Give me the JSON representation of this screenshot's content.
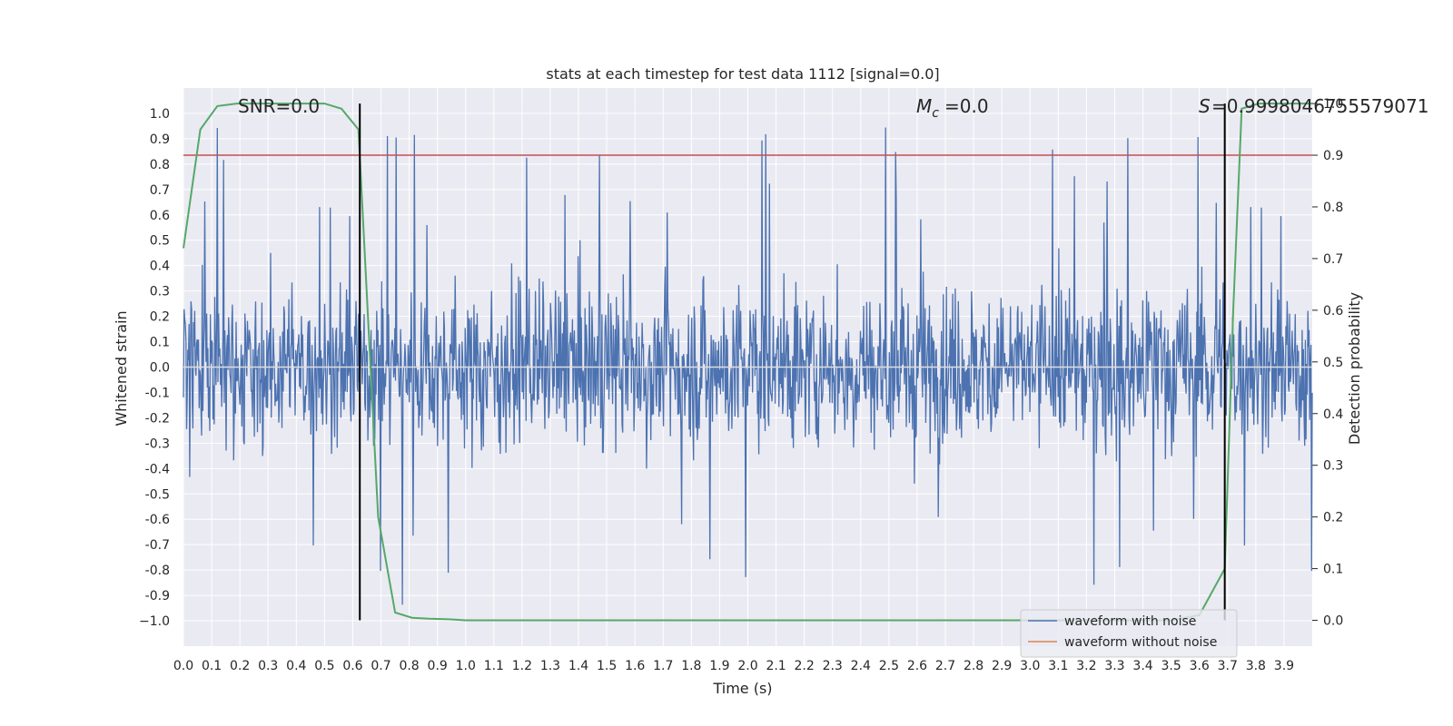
{
  "chart_data": {
    "type": "line",
    "title": "stats at each timestep for test data 1112 [signal=0.0]",
    "xlabel": "Time (s)",
    "ylabel": "Whitened strain",
    "ylabel_right": "Detection probability",
    "xlim": [
      0.0,
      4.0
    ],
    "ylim": [
      -1.1,
      1.1
    ],
    "ylim_right": [
      -0.05,
      1.03
    ],
    "x_ticks": [
      "0.0",
      "0.1",
      "0.2",
      "0.3",
      "0.4",
      "0.5",
      "0.6",
      "0.7",
      "0.8",
      "0.9",
      "1.0",
      "1.1",
      "1.2",
      "1.3",
      "1.4",
      "1.5",
      "1.6",
      "1.7",
      "1.8",
      "1.9",
      "2.0",
      "2.1",
      "2.2",
      "2.3",
      "2.4",
      "2.5",
      "2.6",
      "2.7",
      "2.8",
      "2.9",
      "3.0",
      "3.1",
      "3.2",
      "3.3",
      "3.4",
      "3.5",
      "3.6",
      "3.7",
      "3.8",
      "3.9"
    ],
    "y_ticks": [
      "1.0",
      "0.9",
      "0.8",
      "0.7",
      "0.6",
      "0.5",
      "0.4",
      "0.3",
      "0.2",
      "0.1",
      "0.0",
      "-0.1",
      "-0.2",
      "-0.3",
      "-0.4",
      "-0.5",
      "-0.6",
      "-0.7",
      "-0.8",
      "-0.9",
      "−1.0"
    ],
    "y_right_ticks": [
      "1.0",
      "0.9",
      "0.8",
      "0.7",
      "0.6",
      "0.5",
      "0.4",
      "0.3",
      "0.2",
      "0.1",
      "0.0"
    ],
    "grid": true,
    "legend_position": "lower-right",
    "annotations": {
      "snr_label": "SNR=0.0",
      "mc_label": "=0.0",
      "s_label": "=0.9998046755579071"
    },
    "threshold_line": {
      "value_right": 0.9,
      "color": "#c44e52"
    },
    "vertical_lines_x": [
      0.625,
      3.69
    ],
    "series": [
      {
        "name": "waveform with noise",
        "color": "#4c72b0",
        "kind": "noise",
        "amplitude_typical": 0.4,
        "amplitude_max": 0.98
      },
      {
        "name": "waveform without noise",
        "color": "#dd8452",
        "values_y": 0.0
      },
      {
        "color": "#55a868",
        "axis": "right",
        "x": [
          0.0,
          0.06,
          0.12,
          0.19,
          0.25,
          0.31,
          0.37,
          0.44,
          0.5,
          0.56,
          0.62,
          0.69,
          0.75,
          0.81,
          0.87,
          0.94,
          1.0,
          1.5,
          2.0,
          2.5,
          3.0,
          3.5,
          3.6,
          3.69,
          3.72,
          3.75,
          3.81,
          3.87,
          3.94,
          4.0
        ],
        "y": [
          0.72,
          0.95,
          0.995,
          1.0,
          1.0,
          1.0,
          1.0,
          1.0,
          1.0,
          0.99,
          0.95,
          0.2,
          0.015,
          0.005,
          0.003,
          0.002,
          0.0,
          0.0,
          0.0,
          0.0,
          0.0,
          0.0,
          0.01,
          0.1,
          0.6,
          0.99,
          1.0,
          1.0,
          1.0,
          1.0
        ]
      }
    ]
  }
}
